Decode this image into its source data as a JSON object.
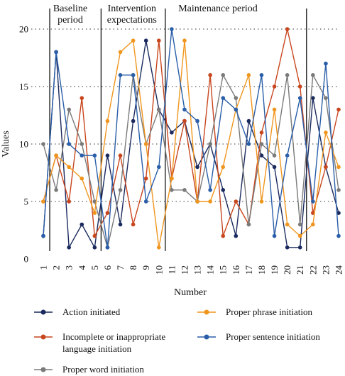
{
  "chart_data": {
    "type": "line",
    "xlabel": "Number",
    "ylabel": "Values",
    "xlim": [
      1,
      24
    ],
    "ylim": [
      0,
      20
    ],
    "yticks": [
      0,
      5,
      10,
      15,
      20
    ],
    "grid": "horizontal dotted",
    "legend_position": "bottom",
    "x": [
      1,
      2,
      3,
      4,
      5,
      6,
      7,
      8,
      9,
      10,
      11,
      12,
      13,
      14,
      15,
      16,
      17,
      18,
      19,
      20,
      21,
      22,
      23,
      24
    ],
    "phase_dividers": [
      1.5,
      5.5,
      10.5,
      21.5
    ],
    "phases": [
      {
        "label": "Baseline\nperiod",
        "x_center": 3.1
      },
      {
        "label": "Intervention\nexpectations",
        "x_center": 7.9
      },
      {
        "label": "Maintenance period",
        "x_center": 14.6
      }
    ],
    "series": [
      {
        "name": "Action initiated",
        "color": "#1b2a5e",
        "values": [
          2,
          18,
          1,
          3,
          1,
          9,
          3,
          12,
          19,
          13,
          11,
          12,
          8,
          10,
          6,
          2,
          12,
          9,
          8,
          1,
          1,
          14,
          8,
          4
        ]
      },
      {
        "name": "Incomplete or inappropriate language initiation",
        "color": "#c8461e",
        "values": [
          5,
          9,
          5,
          14,
          2,
          4,
          9,
          3,
          7,
          19,
          7,
          12,
          5,
          16,
          2,
          5,
          3,
          11,
          15,
          20,
          15,
          4,
          8,
          13
        ]
      },
      {
        "name": "Proper word initiation",
        "color": "#7a7a7a",
        "values": [
          10,
          6,
          13,
          10,
          5,
          1,
          6,
          16,
          10,
          13,
          6,
          6,
          5,
          10,
          16,
          14,
          3,
          10,
          9,
          16,
          3,
          16,
          14,
          6
        ]
      },
      {
        "name": "Proper phrase initiation",
        "color": "#f0961e",
        "values": [
          5,
          9,
          8,
          7,
          4,
          12,
          18,
          19,
          10,
          1,
          7,
          19,
          5,
          5,
          8,
          13,
          16,
          5,
          13,
          3,
          2,
          3,
          11,
          8
        ]
      },
      {
        "name": "Proper sentence initiation",
        "color": "#2a5ea8",
        "values": [
          2,
          18,
          10,
          9,
          9,
          1,
          16,
          16,
          5,
          8,
          20,
          13,
          12,
          6,
          14,
          13,
          10,
          16,
          2,
          9,
          14,
          5,
          17,
          2
        ]
      }
    ]
  },
  "legend": [
    {
      "label": "Action initiated",
      "color": "#1b2a5e"
    },
    {
      "label": "Proper phrase initiation",
      "color": "#f0961e"
    },
    {
      "label": "Incomplete or inappropriate language initiation",
      "color": "#c8461e"
    },
    {
      "label": "Proper sentence initiation",
      "color": "#2a5ea8"
    },
    {
      "label": "Proper word initiation",
      "color": "#7a7a7a"
    }
  ]
}
